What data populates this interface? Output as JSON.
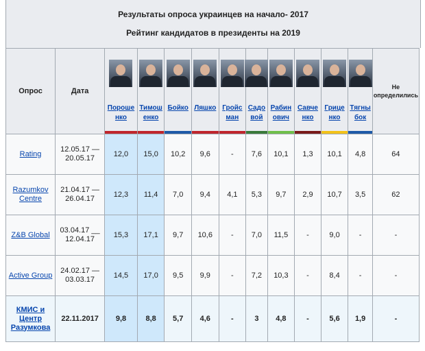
{
  "header": {
    "title": "Результаты опроса украинцев на начало- 2017",
    "subtitle": "Рейтинг кандидатов в президенты на 2019"
  },
  "columns": {
    "source": "Опрос",
    "date": "Дата",
    "undecided": "Не определились"
  },
  "candidates": [
    {
      "name_top": "Пороше",
      "name_bottom": "нко",
      "color": "#c0262d"
    },
    {
      "name_top": "Тимош",
      "name_bottom": "енко",
      "color": "#c0262d"
    },
    {
      "name_top": "Бойко",
      "name_bottom": "",
      "color": "#1e5aa8"
    },
    {
      "name_top": "Ляшко",
      "name_bottom": "",
      "color": "#c0262d"
    },
    {
      "name_top": "Гройс",
      "name_bottom": "ман",
      "color": "#c0262d"
    },
    {
      "name_top": "Садо",
      "name_bottom": "вой",
      "color": "#3a7a3a"
    },
    {
      "name_top": "Рабин",
      "name_bottom": "ович",
      "color": "#6fbf4a"
    },
    {
      "name_top": "Савче",
      "name_bottom": "нко",
      "color": "#7a1a1a"
    },
    {
      "name_top": "Грице",
      "name_bottom": "нко",
      "color": "#f2c21a"
    },
    {
      "name_top": "Тягны",
      "name_bottom": "бок",
      "color": "#1e5aa8"
    }
  ],
  "rows": [
    {
      "source": "Rating",
      "date": "12.05.17 — 20.05.17",
      "values": [
        "12,0",
        "15,0",
        "10,2",
        "9,6",
        "-",
        "7,6",
        "10,1",
        "1,3",
        "10,1",
        "4,8"
      ],
      "undecided": "64"
    },
    {
      "source": "Razumkov Centre",
      "date": "21.04.17 — 26.04.17",
      "values": [
        "12,3",
        "11,4",
        "7,0",
        "9,4",
        "4,1",
        "5,3",
        "9,7",
        "2,9",
        "10,7",
        "3,5"
      ],
      "undecided": "62"
    },
    {
      "source": "Z&B Global",
      "date": "03.04.17 __ 12.04.17",
      "values": [
        "15,3",
        "17,1",
        "9,7",
        "10,6",
        "-",
        "7,0",
        "11,5",
        "-",
        "9,0",
        "-"
      ],
      "undecided": "-"
    },
    {
      "source": "Active Group",
      "date": "24.02.17 — 03.03.17",
      "values": [
        "14,5",
        "17,0",
        "9,5",
        "9,9",
        "-",
        "7,2",
        "10,3",
        "-",
        "8,4",
        "-"
      ],
      "undecided": "-"
    },
    {
      "source": "КМИС и Центр Разумкова",
      "date": "22.11.2017",
      "values": [
        "9,8",
        "8,8",
        "5,7",
        "4,6",
        "-",
        "3",
        "4,8",
        "-",
        "5,6",
        "1,9"
      ],
      "undecided": "-"
    }
  ]
}
